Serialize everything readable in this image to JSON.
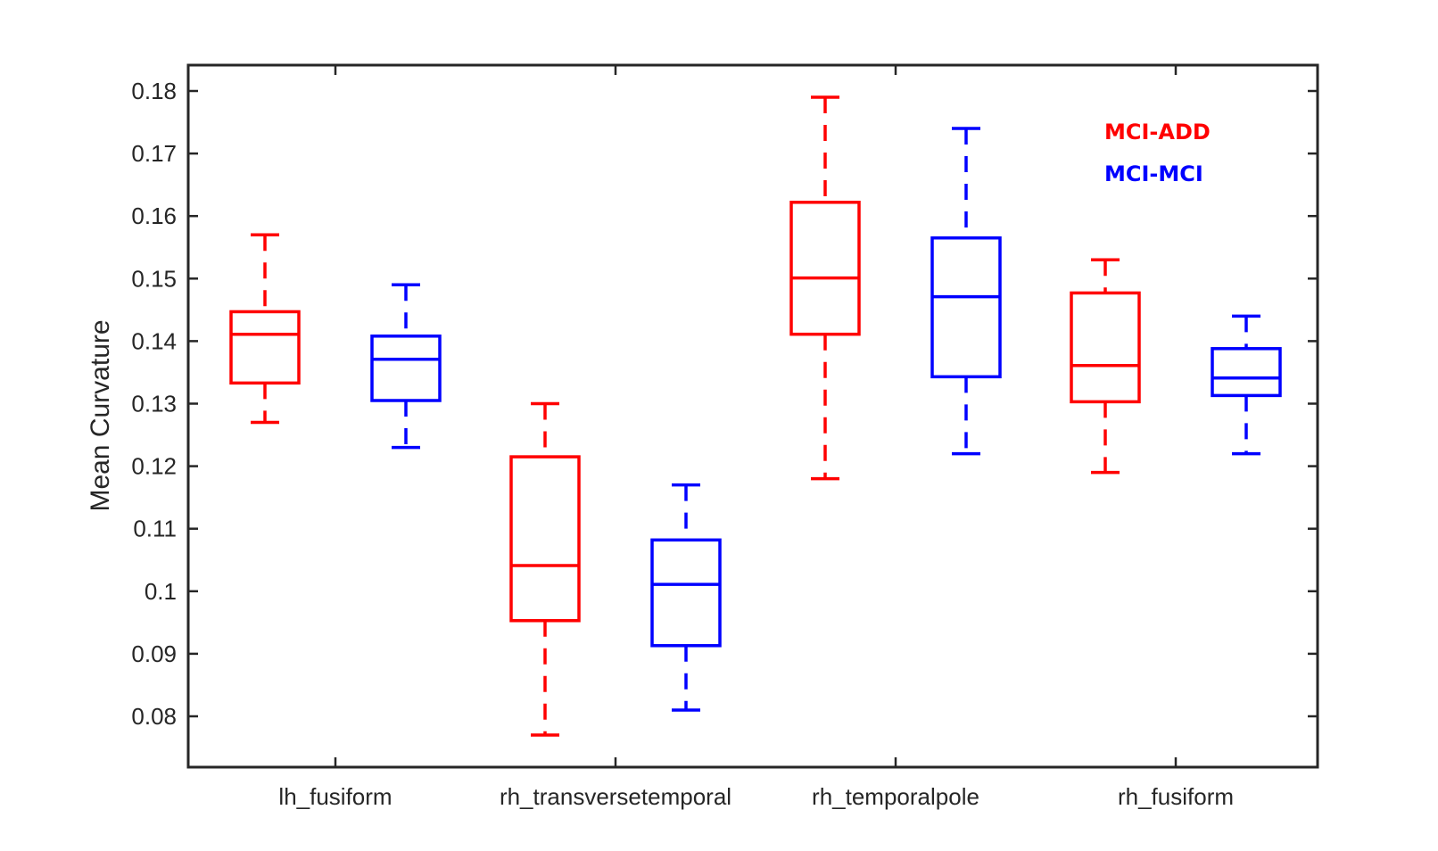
{
  "chart_data": {
    "type": "boxplot",
    "title": "",
    "xlabel": "",
    "ylabel": "Mean Curvature",
    "ylim": [
      0.072,
      0.186
    ],
    "yticks": [
      0.08,
      0.09,
      0.1,
      0.11,
      0.12,
      0.13,
      0.14,
      0.15,
      0.16,
      0.17,
      0.18
    ],
    "ytick_labels": [
      "0.08",
      "0.09",
      "0.1",
      "0.11",
      "0.12",
      "0.13",
      "0.14",
      "0.15",
      "0.16",
      "0.17",
      "0.18"
    ],
    "categories": [
      "lh_fusiform",
      "rh_transversetemporal",
      "rh_temporalpole",
      "rh_fusiform"
    ],
    "grid": false,
    "legend_position": "top-right",
    "series": [
      {
        "name": "MCI-ADD",
        "color": "#ff0000",
        "boxes": [
          {
            "min": 0.127,
            "q1": 0.1333,
            "median": 0.1411,
            "q3": 0.1447,
            "max": 0.157
          },
          {
            "min": 0.077,
            "q1": 0.0953,
            "median": 0.1041,
            "q3": 0.1215,
            "max": 0.13
          },
          {
            "min": 0.118,
            "q1": 0.1411,
            "median": 0.1501,
            "q3": 0.1622,
            "max": 0.179
          },
          {
            "min": 0.119,
            "q1": 0.1303,
            "median": 0.1361,
            "q3": 0.1477,
            "max": 0.153
          }
        ]
      },
      {
        "name": "MCI-MCI",
        "color": "#0000ff",
        "boxes": [
          {
            "min": 0.123,
            "q1": 0.1305,
            "median": 0.1371,
            "q3": 0.1408,
            "max": 0.149
          },
          {
            "min": 0.081,
            "q1": 0.0913,
            "median": 0.1011,
            "q3": 0.1082,
            "max": 0.117
          },
          {
            "min": 0.122,
            "q1": 0.1343,
            "median": 0.1471,
            "q3": 0.1565,
            "max": 0.174
          },
          {
            "min": 0.122,
            "q1": 0.1313,
            "median": 0.1341,
            "q3": 0.1388,
            "max": 0.144
          }
        ]
      }
    ]
  }
}
